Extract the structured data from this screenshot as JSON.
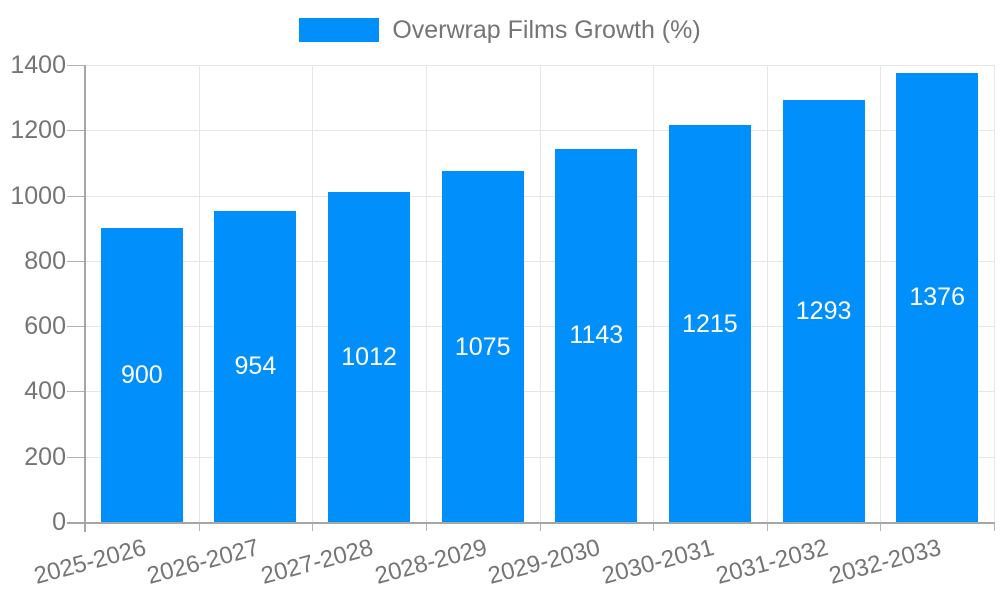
{
  "chart_data": {
    "type": "bar",
    "title": "Overwrap Films Growth (%)",
    "categories": [
      "2025-2026",
      "2026-2027",
      "2027-2028",
      "2028-2029",
      "2029-2030",
      "2030-2031",
      "2031-2032",
      "2032-2033"
    ],
    "series": [
      {
        "name": "Overwrap Films Growth (%)",
        "values": [
          900,
          954,
          1012,
          1075,
          1143,
          1215,
          1293,
          1376
        ]
      }
    ],
    "bar_value_labels": [
      "900",
      "954",
      "1012",
      "1075",
      "1143",
      "1215",
      "1293",
      "1376"
    ],
    "xlabel": "",
    "ylabel": "",
    "ylim": [
      0,
      1400
    ],
    "yticks": [
      0,
      200,
      400,
      600,
      800,
      1000,
      1200,
      1400
    ],
    "ytick_labels": [
      "0",
      "200",
      "400",
      "600",
      "800",
      "1000",
      "1200",
      "1400"
    ],
    "grid": true,
    "legend_position": "top",
    "colors": {
      "bar": "#008FFB",
      "bar_value_label": "#ffffff",
      "axis_text": "#757575",
      "gridline": "#e6e6e6",
      "axis_line": "#a6a6a6",
      "tick": "#b3b3b3",
      "background": "#ffffff"
    }
  }
}
